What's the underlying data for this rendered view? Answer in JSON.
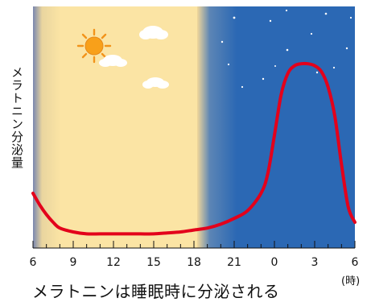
{
  "chart_data": {
    "type": "line",
    "title": "",
    "caption": "メラトニンは睡眠時に分泌される",
    "ylabel": "メラトニン分泌量",
    "xlabel": "",
    "x_unit": "(時)",
    "x_ticks": [
      "6",
      "9",
      "12",
      "15",
      "18",
      "21",
      "0",
      "3",
      "6"
    ],
    "x_range_hours": [
      6,
      30
    ],
    "y_range": [
      0,
      100
    ],
    "day_range_hours": [
      6,
      19.5
    ],
    "night_range_hours": [
      19.5,
      30
    ],
    "colors": {
      "day": "#fbe4a4",
      "night": "#2b68b4",
      "line": "#e3001b",
      "sun": "#f8a01a",
      "moon": "#f5d200"
    },
    "series": [
      {
        "x": [
          6,
          6.5,
          7,
          7.5,
          8,
          9,
          10,
          11,
          12,
          13,
          14,
          15,
          16,
          17,
          18,
          19,
          20,
          21,
          22,
          23,
          23.5,
          24,
          24.5,
          25,
          25.5,
          26,
          26.5,
          27,
          27.5,
          28,
          28.5,
          29,
          29.5,
          30
        ],
        "values": [
          25,
          19,
          14,
          10,
          7,
          5,
          4,
          4,
          4,
          4,
          4,
          4,
          4.5,
          5,
          6,
          7,
          9,
          12,
          16,
          25,
          35,
          55,
          76,
          87,
          91,
          92,
          92,
          91,
          88,
          80,
          65,
          40,
          18,
          10
        ]
      }
    ]
  }
}
